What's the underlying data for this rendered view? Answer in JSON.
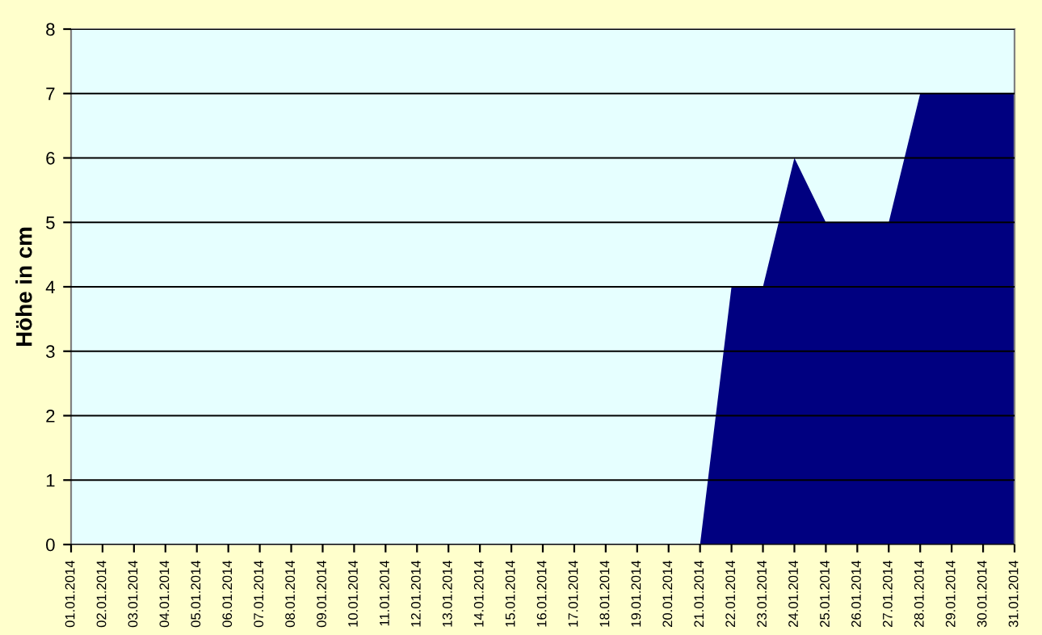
{
  "chart_data": {
    "type": "area",
    "ylabel": "Höhe in cm",
    "categories": [
      "01.01.2014",
      "02.01.2014",
      "03.01.2014",
      "04.01.2014",
      "05.01.2014",
      "06.01.2014",
      "07.01.2014",
      "08.01.2014",
      "09.01.2014",
      "10.01.2014",
      "11.01.2014",
      "12.01.2014",
      "13.01.2014",
      "14.01.2014",
      "15.01.2014",
      "16.01.2014",
      "17.01.2014",
      "18.01.2014",
      "19.01.2014",
      "20.01.2014",
      "21.01.2014",
      "22.01.2014",
      "23.01.2014",
      "24.01.2014",
      "25.01.2014",
      "26.01.2014",
      "27.01.2014",
      "28.01.2014",
      "29.01.2014",
      "30.01.2014",
      "31.01.2014"
    ],
    "values": [
      0,
      0,
      0,
      0,
      0,
      0,
      0,
      0,
      0,
      0,
      0,
      0,
      0,
      0,
      0,
      0,
      0,
      0,
      0,
      0,
      0,
      4,
      4,
      6,
      5,
      5,
      5,
      7,
      7,
      7,
      7
    ],
    "color": "#000080",
    "ylim": [
      0,
      8
    ],
    "yticks": [
      0,
      1,
      2,
      3,
      4,
      5,
      6,
      7,
      8
    ],
    "grid": "y",
    "legend": false
  }
}
